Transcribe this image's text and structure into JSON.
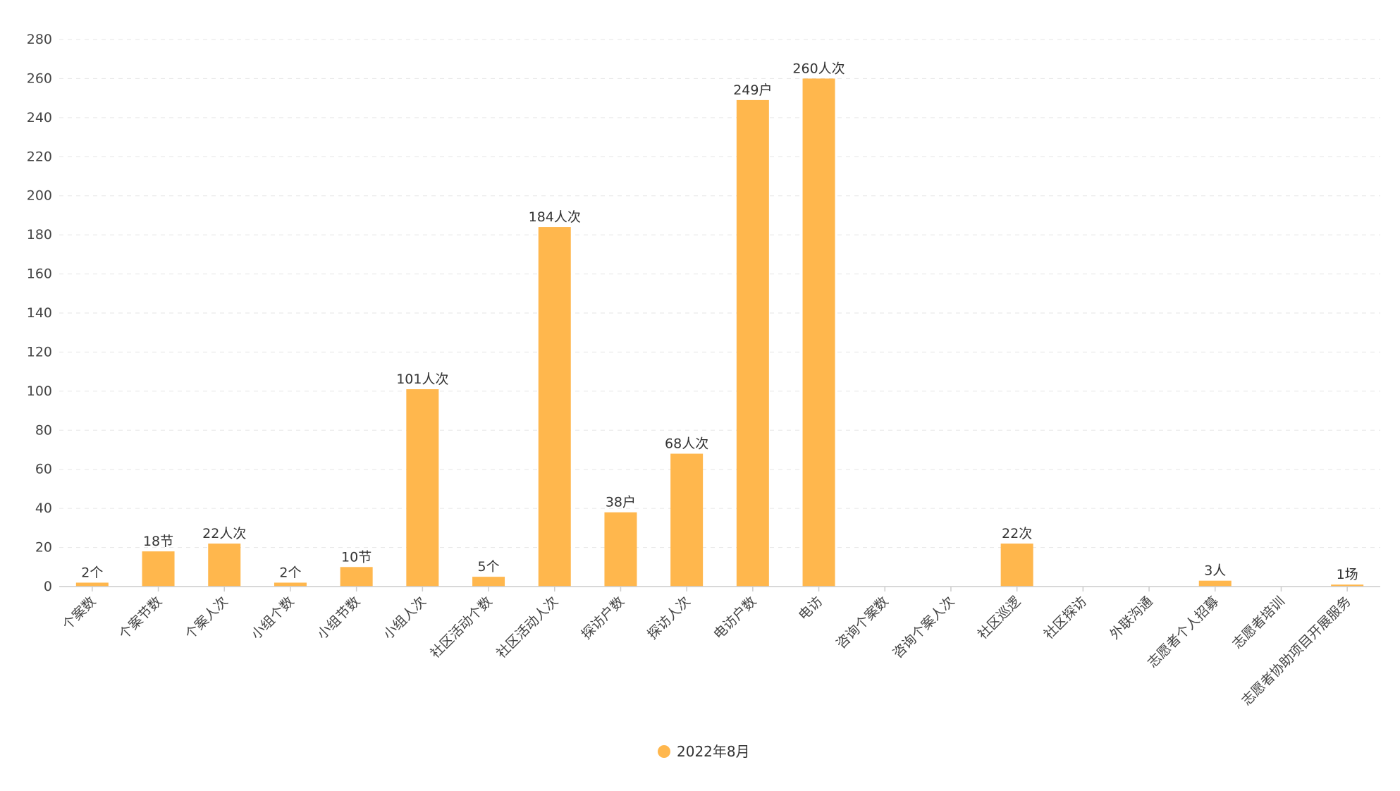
{
  "chart_data": {
    "type": "bar",
    "categories": [
      "个案数",
      "个案节数",
      "个案人次",
      "小组个数",
      "小组节数",
      "小组人次",
      "社区活动个数",
      "社区活动人次",
      "探访户数",
      "探访人次",
      "电访户数",
      "电访",
      "咨询个案数",
      "咨询个案人次",
      "社区巡逻",
      "社区探访",
      "外联沟通",
      "志愿者个人招募",
      "志愿者培训",
      "志愿者协助项目开展服务"
    ],
    "series": [
      {
        "name": "2022年8月",
        "values": [
          2,
          18,
          22,
          2,
          10,
          101,
          5,
          184,
          38,
          68,
          249,
          260,
          0,
          0,
          22,
          0,
          0,
          3,
          0,
          1
        ],
        "labels": [
          "2个",
          "18节",
          "22人次",
          "2个",
          "10节",
          "101人次",
          "5个",
          "184人次",
          "38户",
          "68人次",
          "249户",
          "260人次",
          "",
          "",
          "22次",
          "",
          "",
          "3人",
          "",
          "1场"
        ],
        "color": "#FFB74D"
      }
    ],
    "yticks": [
      "0",
      "20",
      "40",
      "60",
      "80",
      "100",
      "120",
      "140",
      "160",
      "180",
      "200",
      "220",
      "240",
      "260",
      "280"
    ],
    "ylim": [
      0,
      280
    ],
    "grid": true,
    "legend_position": "bottom-center",
    "title": "",
    "xlabel": "",
    "ylabel": ""
  }
}
